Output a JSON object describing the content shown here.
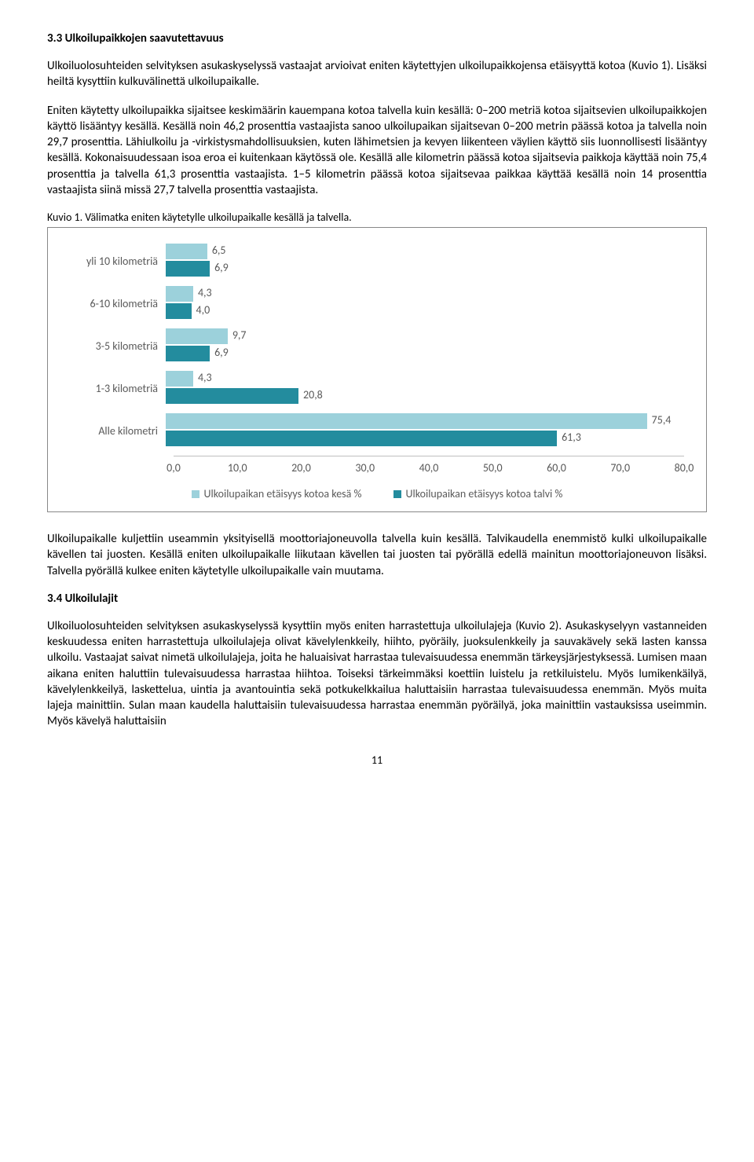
{
  "headings": {
    "h33": "3.3 Ulkoilupaikkojen saavutettavuus",
    "h34": "3.4 Ulkoilulajit"
  },
  "paragraphs": {
    "p1": "Ulkoiluolosuhteiden selvityksen asukaskyselyssä vastaajat arvioivat eniten käytettyjen ulkoilupaikkojensa etäisyyttä kotoa (Kuvio 1). Lisäksi heiltä kysyttiin kulkuvälinettä ulkoilupaikalle.",
    "p2": "Eniten käytetty ulkoilupaikka sijaitsee keskimäärin kauempana kotoa talvella kuin kesällä: 0–200 metriä kotoa sijaitsevien ulkoilupaikkojen käyttö lisääntyy kesällä. Kesällä noin 46,2 prosenttia vastaajista sanoo ulkoilupaikan sijaitsevan 0–200 metrin päässä kotoa ja talvella noin 29,7 prosenttia. Lähiulkoilu ja -virkistysmahdollisuuksien, kuten lähimetsien ja kevyen liikenteen väylien käyttö siis luonnollisesti lisääntyy kesällä. Kokonaisuudessaan isoa eroa ei kuitenkaan käytössä ole. Kesällä alle kilometrin päässä kotoa sijaitsevia paikkoja käyttää noin 75,4 prosenttia ja talvella 61,3 prosenttia vastaajista. 1–5 kilometrin päässä kotoa sijaitsevaa paikkaa käyttää kesällä noin 14 prosenttia vastaajista siinä missä 27,7 talvella prosenttia vastaajista.",
    "p3": "Ulkoilupaikalle kuljettiin useammin yksityisellä moottoriajoneuvolla talvella kuin kesällä. Talvikaudella enemmistö kulki ulkoilupaikalle kävellen tai juosten. Kesällä eniten ulkoilupaikalle liikutaan kävellen tai juosten tai pyörällä edellä mainitun moottoriajoneuvon lisäksi. Talvella pyörällä kulkee eniten käytetylle ulkoilupaikalle vain muutama.",
    "p4": "Ulkoiluolosuhteiden selvityksen asukaskyselyssä kysyttiin myös eniten harrastettuja ulkoilulajeja (Kuvio 2). Asukaskyselyyn vastanneiden keskuudessa eniten harrastettuja ulkoilulajeja olivat kävelylenkkeily, hiihto, pyöräily, juoksulenkkeily ja sauvakävely sekä lasten kanssa ulkoilu. Vastaajat saivat nimetä ulkoilulajeja, joita he haluaisivat harrastaa tulevaisuudessa enemmän tärkeysjärjestyksessä. Lumisen maan aikana eniten haluttiin tulevaisuudessa harrastaa hiihtoa. Toiseksi tärkeimmäksi koettiin luistelu ja retkiluistelu. Myös lumikenkäilyä, kävelylenkkeilyä, laskettelua, uintia ja avantouintia sekä potkukelkkailua haluttaisiin harrastaa tulevaisuudessa enemmän. Myös muita lajeja mainittiin. Sulan maan kaudella haluttaisiin tulevaisuudessa harrastaa enemmän pyöräilyä, joka mainittiin vastauksissa useimmin. Myös kävelyä haluttaisiin"
  },
  "chart_caption": "Kuvio 1. Välimatka eniten käytetylle ulkoilupaikalle kesällä ja talvella.",
  "chart": {
    "type": "bar",
    "orientation": "horizontal",
    "categories": [
      "yli 10 kilometriä",
      "6-10 kilometriä",
      "3-5 kilometriä",
      "1-3 kilometriä",
      "Alle kilometri"
    ],
    "series": [
      {
        "name": "Ulkoilupaikan etäisyys kotoa kesä %",
        "color": "#9cd1db",
        "values": [
          6.5,
          4.3,
          9.7,
          4.3,
          75.4
        ]
      },
      {
        "name": "Ulkoilupaikan etäisyys kotoa talvi %",
        "color": "#238c9e",
        "values": [
          6.9,
          4.0,
          6.9,
          20.8,
          61.3
        ]
      }
    ],
    "value_labels": [
      [
        "6,5",
        "6,9"
      ],
      [
        "4,3",
        "4,0"
      ],
      [
        "9,7",
        "6,9"
      ],
      [
        "4,3",
        "20,8"
      ],
      [
        "75,4",
        "61,3"
      ]
    ],
    "x_axis": {
      "min": 0,
      "max": 80,
      "ticks": [
        "0,0",
        "10,0",
        "20,0",
        "30,0",
        "40,0",
        "50,0",
        "60,0",
        "70,0",
        "80,0"
      ]
    },
    "label_color": "#595959",
    "tick_color": "#bfbfbf",
    "label_fontsize": 14
  },
  "page_number": "11"
}
